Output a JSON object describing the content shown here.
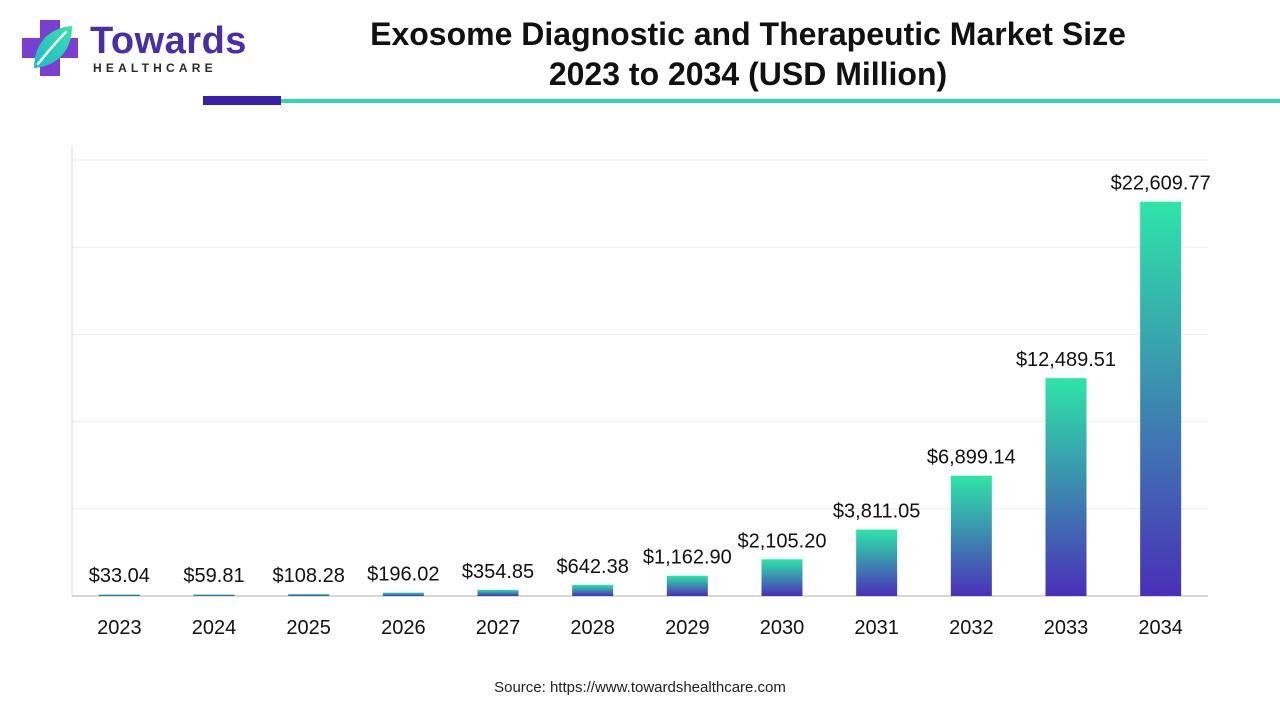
{
  "brand": {
    "name": "Towards",
    "subtitle": "HEALTHCARE",
    "colors": {
      "primary": "#4a2ea8",
      "accent": "#2ed8b0"
    },
    "logo_icon": "medical-cross-leaf-icon"
  },
  "title": {
    "line1": "Exosome Diagnostic and Therapeutic Market Size",
    "line2": "2023 to 2034 (USD Million)"
  },
  "source": "Source: https://www.towardshealthcare.com",
  "chart_data": {
    "type": "bar",
    "categories": [
      "2023",
      "2024",
      "2025",
      "2026",
      "2027",
      "2028",
      "2029",
      "2030",
      "2031",
      "2032",
      "2033",
      "2034"
    ],
    "values": [
      33.04,
      59.81,
      108.28,
      196.02,
      354.85,
      642.38,
      1162.9,
      2105.2,
      3811.05,
      6899.14,
      12489.51,
      22609.77
    ],
    "data_labels": [
      "$33.04",
      "$59.81",
      "$108.28",
      "$196.02",
      "$354.85",
      "$642.38",
      "$1,162.90",
      "$2,105.20",
      "$3,811.05",
      "$6,899.14",
      "$12,489.51",
      "$22,609.77"
    ],
    "ylim": [
      0,
      25000
    ],
    "grid": true,
    "legend": "none",
    "bar_gradient": {
      "top": "#2ee5a8",
      "bottom": "#4a2fb8"
    }
  }
}
